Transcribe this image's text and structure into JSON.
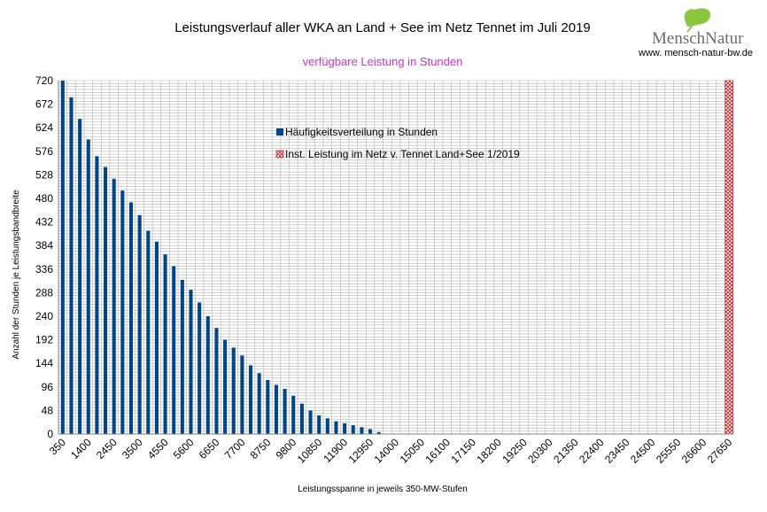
{
  "header": {
    "logo_text": "MenschNatur",
    "url": "www. mensch-natur-bw.de"
  },
  "colors": {
    "bar": "#004586",
    "subtitle": "#cc33cc",
    "grid": "#b3b3b3",
    "hatch": "#c9211e"
  },
  "chart_data": {
    "type": "bar",
    "title": "Leistungsverlauf aller WKA an Land + See im Netz Tennet im Juli 2019",
    "subtitle": "verfügbare Leistung in Stunden",
    "xlabel": "Leistungsspanne in jeweils 350-MW-Stufen",
    "ylabel": "Anzahl der Stunden je Leistungsbandbreite",
    "ylim": [
      0,
      720
    ],
    "yticks": [
      0,
      48,
      96,
      144,
      192,
      240,
      288,
      336,
      384,
      432,
      480,
      528,
      576,
      624,
      672,
      720
    ],
    "x_tick_labels": [
      "350",
      "1400",
      "2450",
      "3500",
      "4550",
      "5600",
      "6650",
      "7700",
      "8750",
      "9800",
      "10850",
      "11900",
      "12950",
      "14000",
      "15050",
      "16100",
      "17150",
      "18200",
      "19250",
      "20300",
      "21350",
      "22400",
      "23450",
      "24500",
      "25550",
      "26600",
      "27650"
    ],
    "x_step": 350,
    "x_start": 350,
    "x_end": 27650,
    "grid": true,
    "legend_position": "top-center",
    "series": [
      {
        "name": "Häufigkeitsverteilung in Stunden",
        "x": [
          350,
          700,
          1050,
          1400,
          1750,
          2100,
          2450,
          2800,
          3150,
          3500,
          3850,
          4200,
          4550,
          4900,
          5250,
          5600,
          5950,
          6300,
          6650,
          7000,
          7350,
          7700,
          8050,
          8400,
          8750,
          9100,
          9450,
          9800,
          10150,
          10500,
          10850,
          11200,
          11550,
          11900,
          12250,
          12600,
          12950,
          13300
        ],
        "values": [
          720,
          686,
          642,
          600,
          566,
          544,
          520,
          496,
          472,
          446,
          414,
          392,
          366,
          342,
          314,
          294,
          268,
          240,
          216,
          192,
          176,
          160,
          140,
          124,
          110,
          100,
          92,
          78,
          62,
          48,
          38,
          32,
          26,
          22,
          18,
          14,
          10,
          4
        ]
      },
      {
        "name": "Inst. Leistung im Netz v. Tennet  Land+See 1/2019",
        "x": [
          27650
        ],
        "values": [
          720
        ]
      }
    ]
  }
}
